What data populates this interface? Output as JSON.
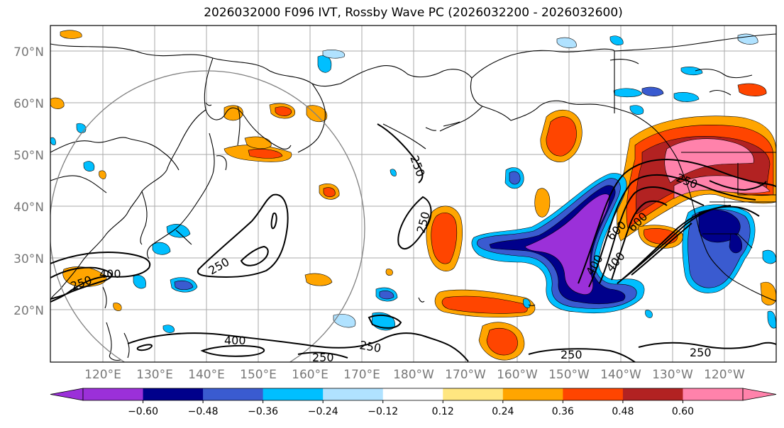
{
  "title": "2026032000 F096 IVT, Rossby Wave PC (2026032200 - 2026032600)",
  "lat_labels": [
    "70°N",
    "60°N",
    "50°N",
    "40°N",
    "30°N",
    "20°N"
  ],
  "lon_labels": [
    "120°E",
    "130°E",
    "140°E",
    "150°E",
    "160°E",
    "170°E",
    "180°W",
    "170°W",
    "160°W",
    "150°W",
    "140°W",
    "130°W",
    "120°W"
  ],
  "contour_labels": [
    "250",
    "250",
    "250",
    "400",
    "250",
    "400",
    "250",
    "250",
    "250",
    "250",
    "250",
    "400",
    "600",
    "600",
    "400"
  ],
  "colorbar": {
    "ticks": [
      "−0.60",
      "−0.48",
      "−0.36",
      "−0.24",
      "−0.12",
      "0.12",
      "0.24",
      "0.36",
      "0.48",
      "0.60"
    ],
    "colors": [
      "#9b30d9",
      "#00008b",
      "#3a5bd0",
      "#00bfff",
      "#b0e2ff",
      "#ffffff",
      "#ffe680",
      "#ffa500",
      "#ff4500",
      "#b22222",
      "#ff82ab"
    ]
  }
}
